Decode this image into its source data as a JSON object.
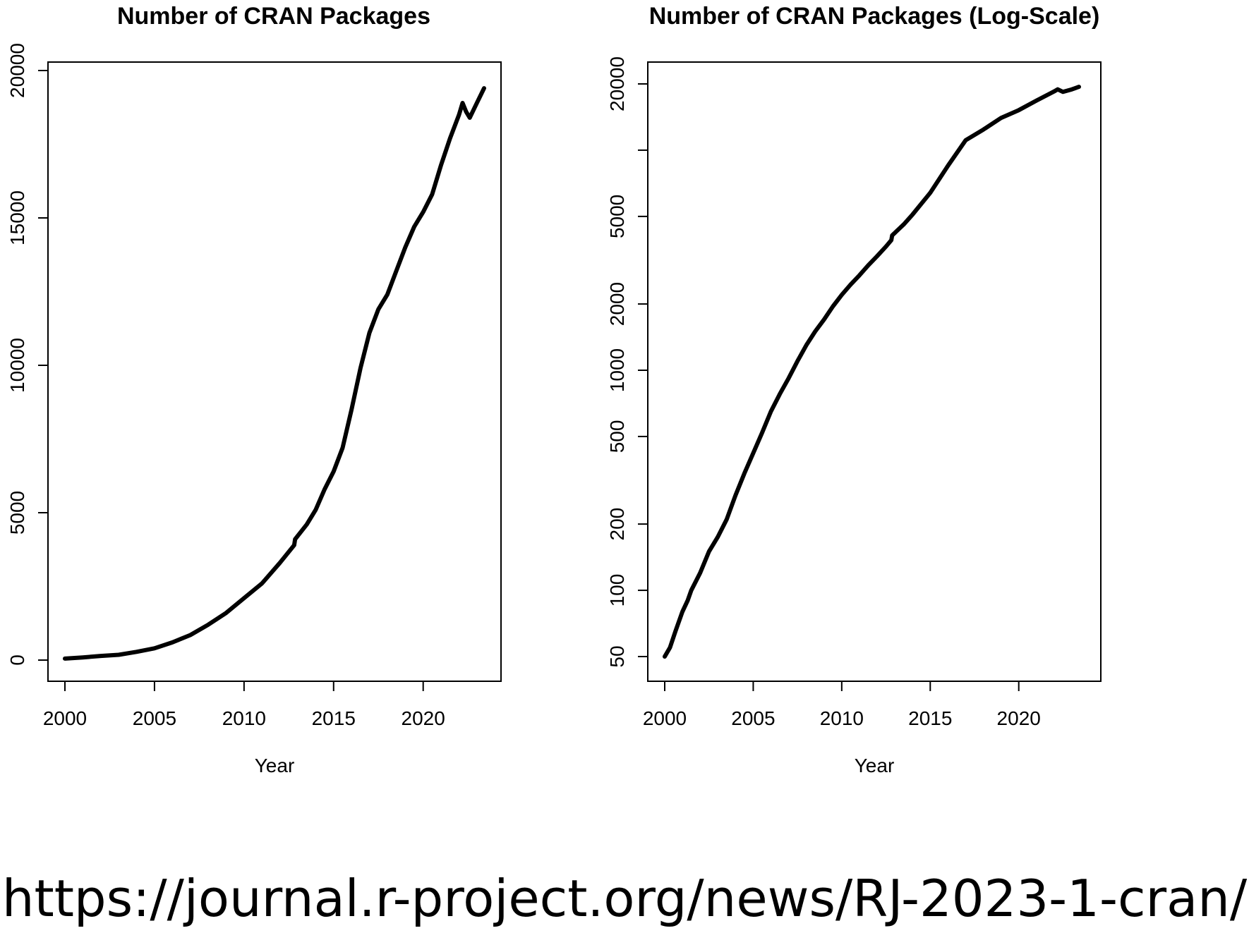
{
  "chart_data": [
    {
      "type": "line",
      "title": "Number of CRAN Packages",
      "xlabel": "Year",
      "ylabel": "",
      "xlim": [
        2000,
        2023.4
      ],
      "ylim": [
        0,
        20000
      ],
      "y_scale": "linear",
      "x_ticks": [
        2000,
        2005,
        2010,
        2015,
        2020
      ],
      "x_tick_labels": [
        "2000",
        "2005",
        "2010",
        "2015",
        "2020"
      ],
      "y_ticks": [
        0,
        5000,
        10000,
        15000,
        20000
      ],
      "y_tick_labels": [
        "0",
        "5000",
        "10000",
        "15000",
        "20000"
      ],
      "grid": false,
      "series": [
        {
          "color": "#000000",
          "x": [
            2000.0,
            2001.0,
            2002.0,
            2003.0,
            2004.0,
            2005.0,
            2006.0,
            2007.0,
            2008.0,
            2009.0,
            2010.0,
            2011.0,
            2012.0,
            2012.8,
            2012.85,
            2013.5,
            2014.0,
            2014.5,
            2015.0,
            2015.5,
            2016.0,
            2016.5,
            2017.0,
            2017.5,
            2018.0,
            2018.5,
            2019.0,
            2019.5,
            2020.0,
            2020.5,
            2021.0,
            2021.5,
            2022.0,
            2022.2,
            2022.4,
            2022.6,
            2023.0,
            2023.4
          ],
          "y": [
            50,
            90,
            140,
            180,
            280,
            400,
            600,
            850,
            1200,
            1600,
            2100,
            2600,
            3300,
            3900,
            4100,
            4600,
            5100,
            5800,
            6400,
            7200,
            8500,
            9900,
            11100,
            11900,
            12400,
            13200,
            14000,
            14700,
            15200,
            15800,
            16800,
            17700,
            18500,
            18900,
            18600,
            18400,
            18900,
            19400
          ]
        }
      ]
    },
    {
      "type": "line",
      "title": "Number of CRAN Packages (Log-Scale)",
      "xlabel": "Year",
      "ylabel": "",
      "xlim": [
        2000,
        2023.4
      ],
      "ylim": [
        45,
        24000
      ],
      "y_scale": "log",
      "x_ticks": [
        2000,
        2005,
        2010,
        2015,
        2020
      ],
      "x_tick_labels": [
        "2000",
        "2005",
        "2010",
        "2015",
        "2020"
      ],
      "y_ticks": [
        50,
        100,
        200,
        500,
        1000,
        2000,
        5000,
        10000,
        20000
      ],
      "y_tick_labels": [
        "50",
        "100",
        "200",
        "500",
        "1000",
        "2000",
        "5000",
        "",
        "20000"
      ],
      "grid": false,
      "series": [
        {
          "color": "#000000",
          "x": [
            2000.0,
            2000.3,
            2000.6,
            2001.0,
            2001.3,
            2001.5,
            2002.0,
            2002.5,
            2003.0,
            2003.5,
            2004.0,
            2004.5,
            2005.0,
            2005.5,
            2006.0,
            2006.5,
            2007.0,
            2007.5,
            2008.0,
            2008.5,
            2009.0,
            2009.5,
            2010.0,
            2010.5,
            2011.0,
            2011.5,
            2012.0,
            2012.5,
            2012.8,
            2012.85,
            2013.5,
            2014.0,
            2015.0,
            2016.0,
            2017.0,
            2018.0,
            2019.0,
            2020.0,
            2021.0,
            2022.0,
            2022.2,
            2022.5,
            2023.0,
            2023.4
          ],
          "y": [
            50,
            55,
            65,
            80,
            90,
            100,
            120,
            150,
            175,
            210,
            270,
            340,
            420,
            520,
            650,
            780,
            920,
            1100,
            1300,
            1500,
            1700,
            1950,
            2200,
            2450,
            2700,
            3000,
            3300,
            3650,
            3900,
            4100,
            4600,
            5100,
            6400,
            8500,
            11100,
            12400,
            14000,
            15200,
            16800,
            18500,
            18900,
            18400,
            18900,
            19400
          ]
        }
      ]
    }
  ],
  "footer": {
    "url": "https://journal.r-project.org/news/RJ-2023-1-cran/"
  }
}
